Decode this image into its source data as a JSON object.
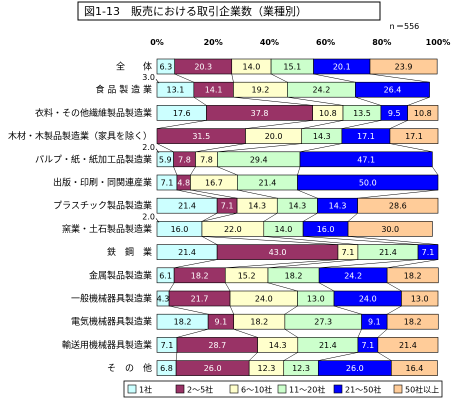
{
  "chart_data": {
    "type": "bar",
    "orientation": "horizontal",
    "stacked": "percent",
    "title": "図1-13　販売における取引企業数（業種別）",
    "n_label": "ｎ＝556",
    "xlim": [
      0,
      100
    ],
    "x_ticks": [
      "0%",
      "20%",
      "40%",
      "60%",
      "80%",
      "100%"
    ],
    "grid": false,
    "legend_position": "bottom",
    "categories": [
      "全　　体",
      "食 品 製 造 業",
      "衣料・その他繊維製品製造業",
      "木材・木製品製造業（家具を除く）",
      "パルプ・紙・紙加工品製造業",
      "出版・印刷・同関連産業",
      "プラスチック製品製造業",
      "窯業・土石製品製造業",
      "鉄　鋼　業",
      "金属製品製造業",
      "一般機械器具製造業",
      "電気機械器具製造業",
      "輸送用機械器具製造業",
      "そ　の　他"
    ],
    "series": [
      {
        "name": "1社",
        "color": "#ccffff",
        "values": [
          6.3,
          13.1,
          17.6,
          0,
          5.9,
          7.1,
          21.4,
          16.0,
          21.4,
          6.1,
          4.3,
          18.2,
          7.1,
          6.8
        ]
      },
      {
        "name": "2～5社",
        "color": "#993366",
        "values": [
          20.3,
          14.1,
          37.8,
          31.5,
          7.8,
          4.8,
          7.1,
          0,
          43.0,
          18.2,
          21.7,
          9.1,
          28.7,
          26.0
        ]
      },
      {
        "name": "6～10社",
        "color": "#ffffcc",
        "values": [
          14.0,
          19.2,
          10.8,
          20.0,
          7.8,
          16.7,
          14.3,
          22.0,
          7.1,
          15.2,
          24.0,
          18.2,
          14.3,
          12.3
        ]
      },
      {
        "name": "11～20社",
        "color": "#ccffcc",
        "values": [
          15.1,
          24.2,
          13.5,
          14.3,
          29.4,
          21.4,
          14.3,
          14.0,
          21.4,
          18.2,
          13.0,
          27.3,
          21.4,
          12.3
        ]
      },
      {
        "name": "21～50社",
        "color": "#0000ff",
        "values": [
          20.1,
          26.4,
          9.5,
          17.1,
          47.1,
          50.0,
          14.3,
          16.0,
          7.1,
          24.2,
          24.0,
          9.1,
          7.1,
          26.0
        ]
      },
      {
        "name": "50社以上",
        "color": "#ffcc99",
        "values": [
          23.9,
          0,
          10.8,
          17.1,
          0,
          0,
          28.6,
          30.0,
          0,
          18.2,
          13.0,
          18.2,
          21.4,
          16.4
        ]
      }
    ],
    "small_annotations": [
      {
        "row": 1,
        "text": "3.0"
      },
      {
        "row": 4,
        "text": "2.0"
      },
      {
        "row": 7,
        "text": "2.0"
      }
    ]
  }
}
